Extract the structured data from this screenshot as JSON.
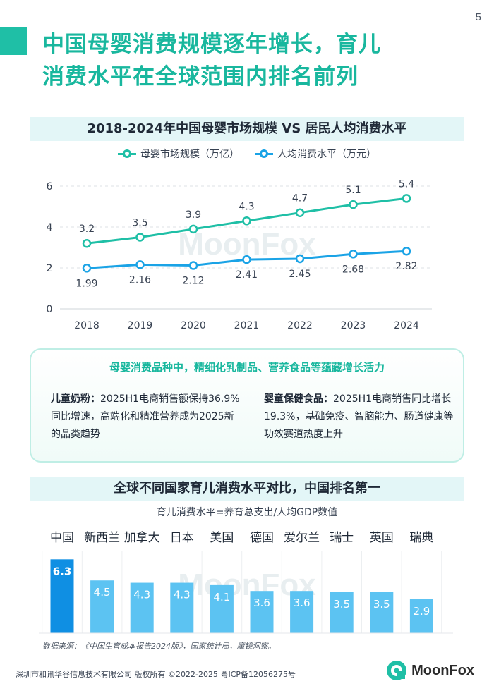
{
  "page": {
    "number": "5",
    "title_line1": "中国母婴消费规模逐年增长，育儿",
    "title_line2": "消费水平在全球范围内排名前列"
  },
  "colors": {
    "teal": "#1fbfa6",
    "blue": "#1aa3e6",
    "bar": "#5cc3f2",
    "bar_highlight": "#0f8fe3"
  },
  "line_section": {
    "banner": "2018-2024年中国母婴市场规模 VS 居民人均消费水平"
  },
  "highlight": {
    "heading": "母婴消费品种中，精细化乳制品、营养食品等蕴藏增长活力",
    "left_label": "儿童奶粉：",
    "left_text": "2025H1电商销售额保持36.9%同比增速，高端化和精准营养成为2025新的品类趋势",
    "right_label": "婴童保健食品：",
    "right_text": "2025H1电商销售同比增长19.3%，基础免疫、智脑能力、肠道健康等功效赛道热度上升"
  },
  "bar_section": {
    "banner": "全球不同国家育儿消费水平对比，中国排名第一",
    "subtitle": "育儿消费水平=养育总支出/人均GDP数值"
  },
  "footer": {
    "source": "数据来源：《中国生育成本报告2024版》，国家统计局，魔镜洞察。",
    "copyright": "深圳市和讯华谷信息技术有限公司 版权所有 ©2022-2025    粤ICP备12056275号",
    "brand": "MoonFox",
    "watermark": "MoonFox"
  },
  "chart_data": [
    {
      "type": "line",
      "x": [
        "2018",
        "2019",
        "2020",
        "2021",
        "2022",
        "2023",
        "2024"
      ],
      "series": [
        {
          "name": "母婴市场规模（万亿）",
          "values": [
            3.2,
            3.5,
            3.9,
            4.3,
            4.7,
            5.1,
            5.4
          ],
          "labels": [
            "3.2",
            "3.5",
            "3.9",
            "4.3",
            "4.7",
            "5.1",
            "5.4"
          ],
          "color": "#1fbfa6"
        },
        {
          "name": "人均消费水平（万元）",
          "values": [
            1.99,
            2.16,
            2.12,
            2.41,
            2.45,
            2.68,
            2.82
          ],
          "labels": [
            "1.99",
            "2.16",
            "2.12",
            "2.41",
            "2.45",
            "2.68",
            "2.82"
          ],
          "color": "#1aa3e6"
        }
      ],
      "yticks": [
        "0",
        "2",
        "4",
        "6"
      ],
      "ylim": [
        0,
        6
      ],
      "grid": true,
      "legend": "top-center"
    },
    {
      "type": "bar",
      "categories": [
        "中国",
        "新西兰",
        "加拿大",
        "日本",
        "美国",
        "德国",
        "爱尔兰",
        "瑞士",
        "英国",
        "瑞典"
      ],
      "values": [
        6.3,
        4.5,
        4.3,
        4.3,
        4.1,
        3.6,
        3.6,
        3.5,
        3.5,
        2.9
      ],
      "labels": [
        "6.3",
        "4.5",
        "4.3",
        "4.3",
        "4.1",
        "3.6",
        "3.6",
        "3.5",
        "3.5",
        "2.9"
      ],
      "highlight_index": 0,
      "ylim": [
        0,
        6.5
      ]
    }
  ]
}
